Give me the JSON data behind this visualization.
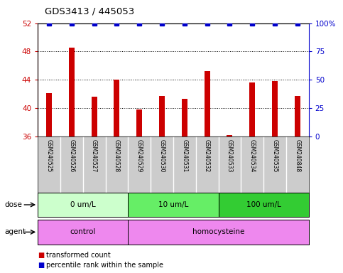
{
  "title": "GDS3413 / 445053",
  "samples": [
    "GSM240525",
    "GSM240526",
    "GSM240527",
    "GSM240528",
    "GSM240529",
    "GSM240530",
    "GSM240531",
    "GSM240532",
    "GSM240533",
    "GSM240534",
    "GSM240535",
    "GSM240848"
  ],
  "bar_values": [
    42.1,
    48.5,
    41.6,
    44.0,
    39.8,
    41.7,
    41.3,
    45.2,
    36.2,
    43.6,
    43.8,
    41.7
  ],
  "percentile_values": [
    100,
    100,
    100,
    100,
    100,
    100,
    100,
    100,
    100,
    100,
    100,
    100
  ],
  "bar_color": "#cc0000",
  "dot_color": "#0000cc",
  "ylim_left": [
    36,
    52
  ],
  "ylim_right": [
    0,
    100
  ],
  "yticks_left": [
    36,
    40,
    44,
    48,
    52
  ],
  "yticks_right": [
    0,
    25,
    50,
    75,
    100
  ],
  "ytick_labels_right": [
    "0",
    "25",
    "50",
    "75",
    "100%"
  ],
  "dose_groups": [
    {
      "label": "0 um/L",
      "start": 0,
      "end": 4,
      "color": "#ccffcc"
    },
    {
      "label": "10 um/L",
      "start": 4,
      "end": 8,
      "color": "#66ee66"
    },
    {
      "label": "100 um/L",
      "start": 8,
      "end": 12,
      "color": "#33cc33"
    }
  ],
  "agent_groups": [
    {
      "label": "control",
      "start": 0,
      "end": 4,
      "color": "#ee88ee"
    },
    {
      "label": "homocysteine",
      "start": 4,
      "end": 12,
      "color": "#ee88ee"
    }
  ],
  "legend_bar_label": "transformed count",
  "legend_dot_label": "percentile rank within the sample",
  "background_color": "#ffffff",
  "plot_bg_color": "#ffffff",
  "ylabel_left_color": "#cc0000",
  "ylabel_right_color": "#0000cc",
  "sample_bg_color": "#cccccc",
  "sample_divider_color": "#ffffff"
}
